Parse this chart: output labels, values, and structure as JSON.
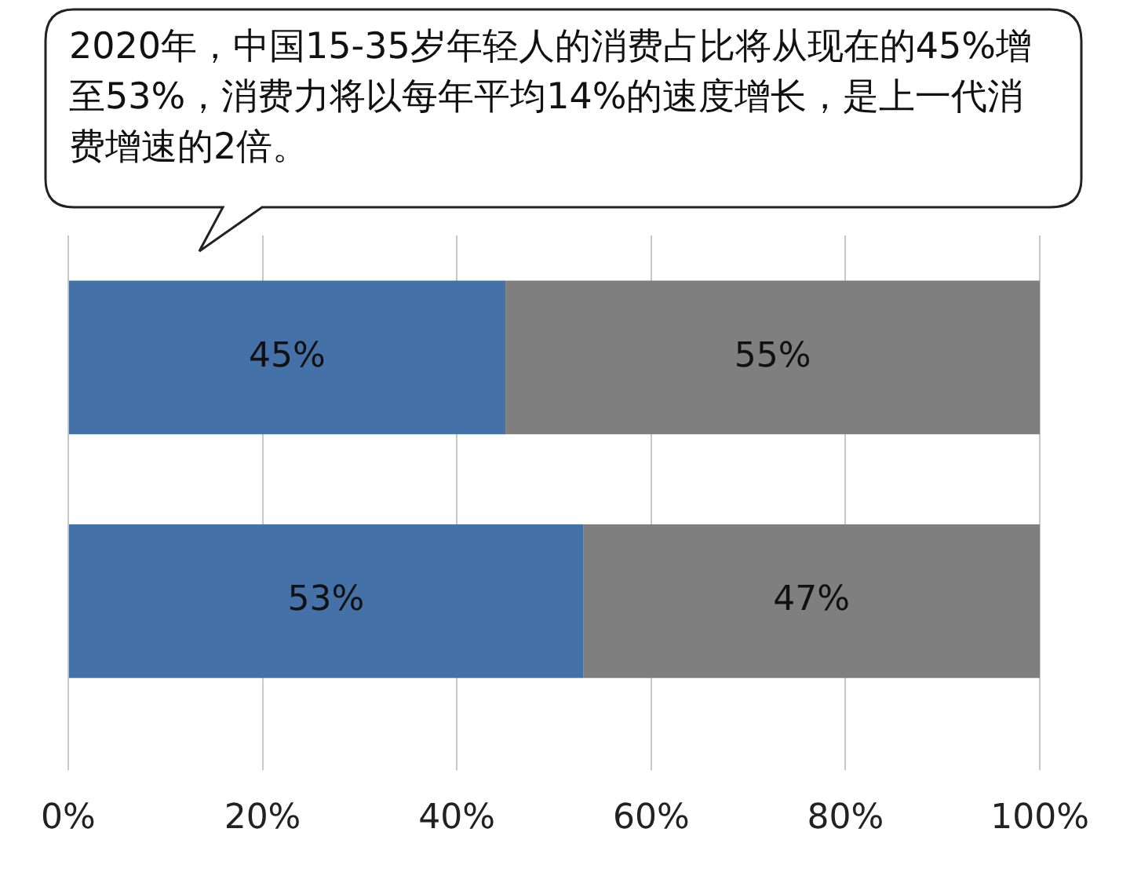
{
  "chart_data": {
    "type": "bar",
    "orientation": "horizontal",
    "stacked": true,
    "annotations": [
      "2020年，中国15-35岁年轻人的消费占比将从现在的45%增至53%，消费力将以每年平均14%的速度增长，是上一代消费增速的2倍。"
    ],
    "categories": [
      null,
      null
    ],
    "series": [
      {
        "color": "#4472a8",
        "values": [
          45,
          53
        ],
        "value_labels": [
          "45%",
          "53%"
        ]
      },
      {
        "color": "#7f7f7f",
        "values": [
          55,
          47
        ],
        "value_labels": [
          "55%",
          "47%"
        ]
      }
    ],
    "xlim": [
      0,
      100
    ],
    "xticks": [
      {
        "value": 0,
        "label": "0%"
      },
      {
        "value": 20,
        "label": "20%"
      },
      {
        "value": 40,
        "label": "40%"
      },
      {
        "value": 60,
        "label": "60%"
      },
      {
        "value": 80,
        "label": "80%"
      },
      {
        "value": 100,
        "label": "100%"
      }
    ],
    "grid": "x",
    "legend": false
  }
}
